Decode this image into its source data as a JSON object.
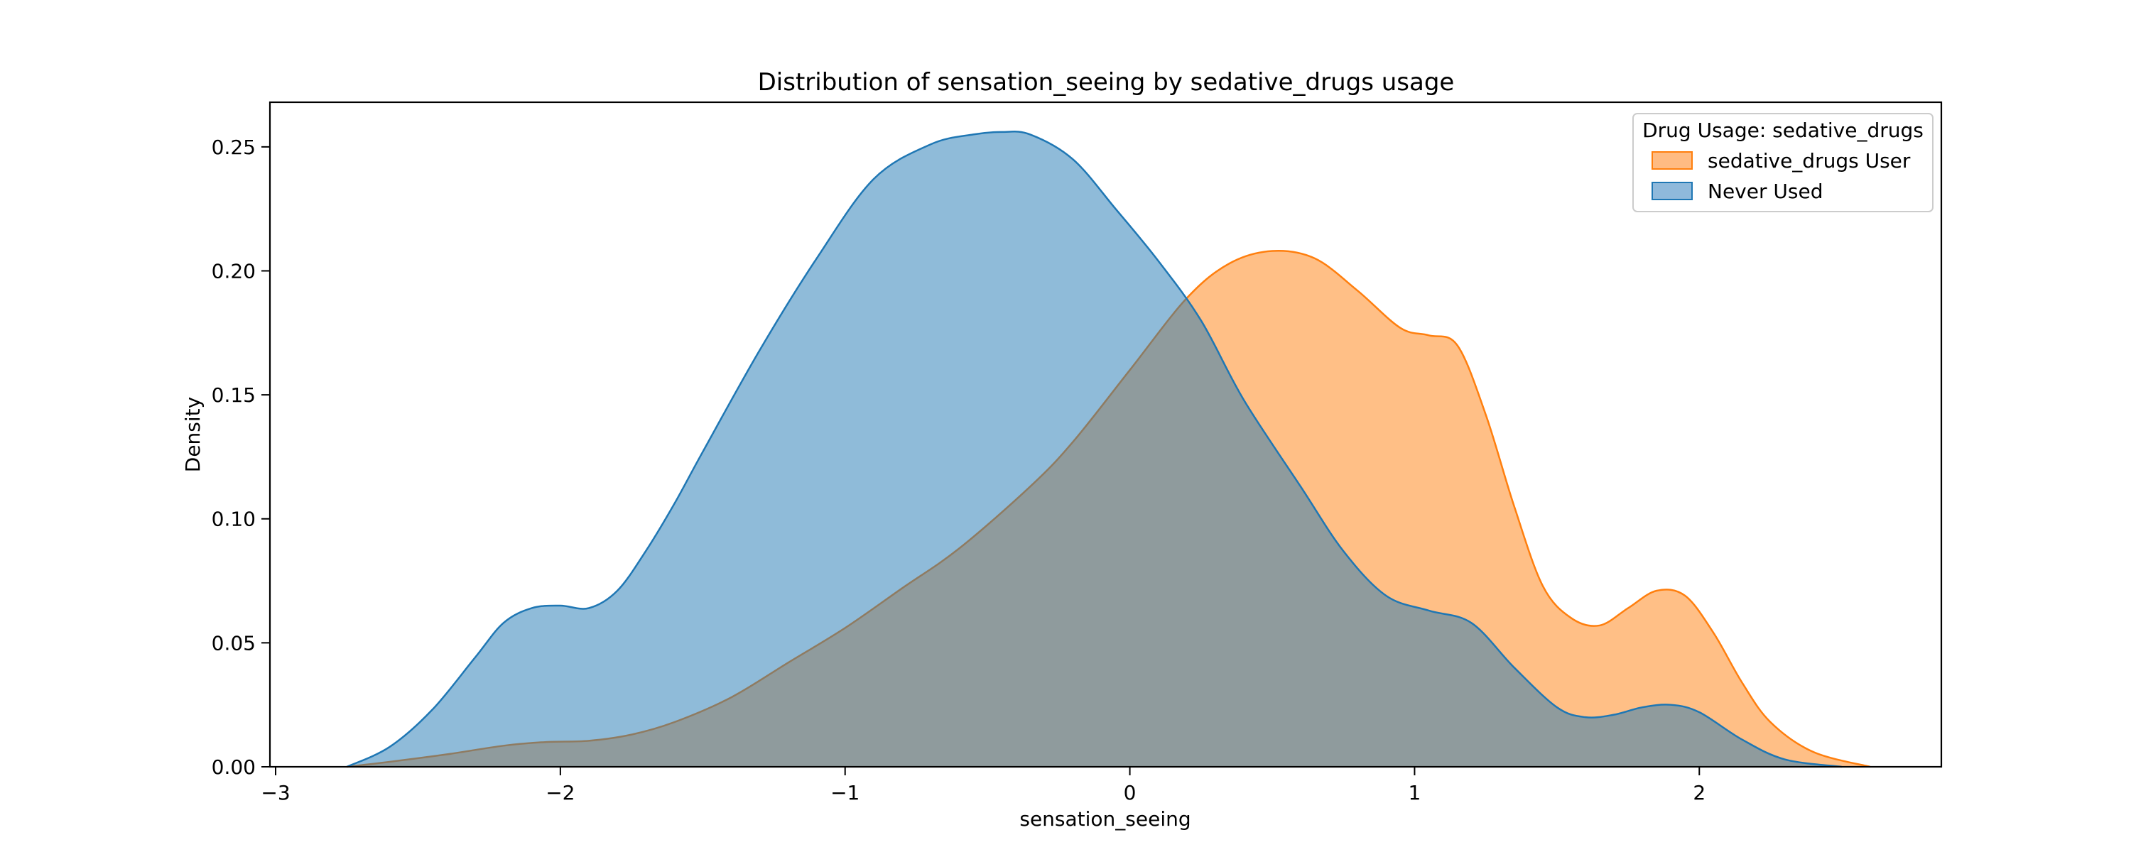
{
  "chart_data": {
    "type": "area",
    "title": "Distribution of sensation_seeing by sedative_drugs usage",
    "xlabel": "sensation_seeing",
    "ylabel": "Density",
    "xlim": [
      -3.02,
      2.85
    ],
    "ylim": [
      0,
      0.268
    ],
    "xticks": [
      -3,
      -2,
      -1,
      0,
      1,
      2
    ],
    "xtick_labels": [
      "−3",
      "−2",
      "−1",
      "0",
      "1",
      "2"
    ],
    "yticks": [
      0,
      0.05,
      0.1,
      0.15,
      0.2,
      0.25
    ],
    "ytick_labels": [
      "0.00",
      "0.05",
      "0.10",
      "0.15",
      "0.20",
      "0.25"
    ],
    "grid": false,
    "legend": {
      "title": "Drug Usage: sedative_drugs",
      "position": "top-right"
    },
    "series": [
      {
        "name": "sedative_drugs User",
        "fill_color": "#ffbb82",
        "line_color": "#ff7f0e",
        "x": [
          -2.75,
          -2.6,
          -2.4,
          -2.2,
          -2.05,
          -1.9,
          -1.75,
          -1.6,
          -1.4,
          -1.2,
          -1.0,
          -0.8,
          -0.6,
          -0.35,
          -0.2,
          0.0,
          0.2,
          0.35,
          0.5,
          0.65,
          0.8,
          0.95,
          1.05,
          1.15,
          1.25,
          1.35,
          1.45,
          1.55,
          1.65,
          1.75,
          1.85,
          1.95,
          2.05,
          2.15,
          2.25,
          2.4,
          2.6
        ],
        "values": [
          0.0,
          0.002,
          0.005,
          0.0085,
          0.01,
          0.0105,
          0.013,
          0.018,
          0.028,
          0.042,
          0.056,
          0.072,
          0.088,
          0.113,
          0.131,
          0.16,
          0.189,
          0.203,
          0.208,
          0.205,
          0.192,
          0.177,
          0.174,
          0.17,
          0.142,
          0.105,
          0.073,
          0.06,
          0.057,
          0.064,
          0.071,
          0.069,
          0.054,
          0.034,
          0.018,
          0.006,
          0.0
        ]
      },
      {
        "name": "Never Used",
        "fill_color": "#8fb9db",
        "line_color": "#1f77b4",
        "x": [
          -2.75,
          -2.6,
          -2.45,
          -2.3,
          -2.2,
          -2.1,
          -2.0,
          -1.9,
          -1.8,
          -1.7,
          -1.6,
          -1.5,
          -1.3,
          -1.1,
          -0.9,
          -0.7,
          -0.55,
          -0.45,
          -0.35,
          -0.2,
          -0.05,
          0.1,
          0.25,
          0.4,
          0.6,
          0.75,
          0.9,
          1.05,
          1.2,
          1.35,
          1.5,
          1.6,
          1.7,
          1.8,
          1.9,
          2.0,
          2.15,
          2.3,
          2.5
        ],
        "values": [
          0.0,
          0.008,
          0.023,
          0.044,
          0.058,
          0.064,
          0.065,
          0.064,
          0.071,
          0.087,
          0.106,
          0.127,
          0.168,
          0.205,
          0.237,
          0.251,
          0.255,
          0.256,
          0.255,
          0.245,
          0.225,
          0.204,
          0.18,
          0.148,
          0.113,
          0.087,
          0.069,
          0.063,
          0.058,
          0.04,
          0.024,
          0.02,
          0.021,
          0.024,
          0.025,
          0.022,
          0.011,
          0.003,
          0.0
        ]
      }
    ]
  }
}
